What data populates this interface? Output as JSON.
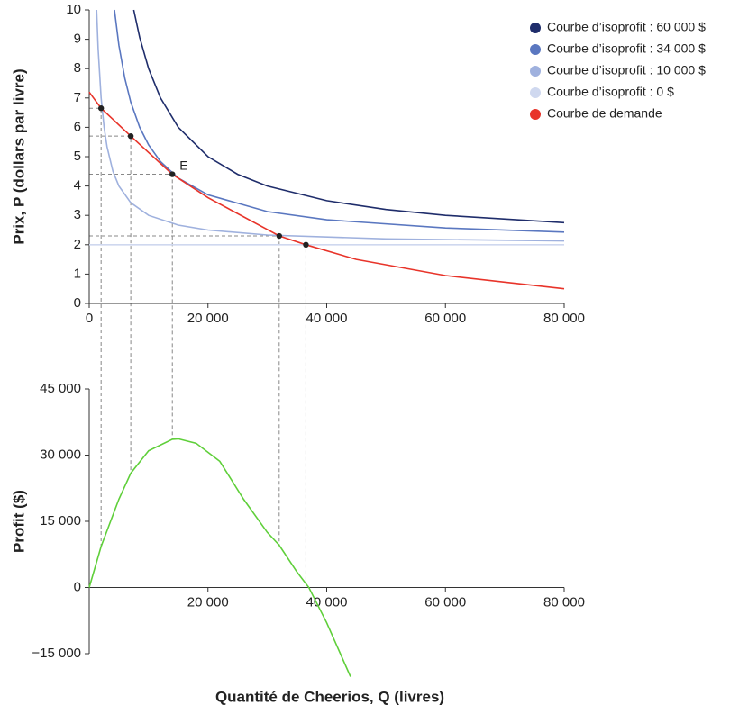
{
  "chart_data": [
    {
      "type": "line",
      "y_label": "Prix, P (dollars par livre)",
      "xlim": [
        0,
        80000
      ],
      "ylim": [
        0,
        10
      ],
      "xticks": [
        0,
        {
          "value": 20000,
          "label": "20 000"
        },
        {
          "value": 40000,
          "label": "40 000"
        },
        {
          "value": 60000,
          "label": "60 000"
        },
        {
          "value": 80000,
          "label": "80 000"
        }
      ],
      "yticks": [
        0,
        1,
        2,
        3,
        4,
        5,
        6,
        7,
        8,
        9,
        10
      ],
      "legend": "top-right",
      "series": [
        {
          "name": "Courbe d’isoprofit : 60 000 $",
          "color": "#1f2d6b",
          "x": [
            7500,
            8500,
            10000,
            12000,
            15000,
            20000,
            25000,
            30000,
            40000,
            50000,
            60000,
            80000
          ],
          "values": [
            10,
            9.06,
            8,
            7,
            6,
            5,
            4.4,
            4,
            3.5,
            3.2,
            3,
            2.75
          ]
        },
        {
          "name": "Courbe d’isoprofit : 34 000 $",
          "color": "#5a77c0",
          "x": [
            4250,
            5000,
            6000,
            7000,
            8500,
            10000,
            12000,
            15000,
            20000,
            30000,
            40000,
            60000,
            80000
          ],
          "values": [
            10,
            8.8,
            7.67,
            6.86,
            6,
            5.4,
            4.83,
            4.27,
            3.7,
            3.13,
            2.85,
            2.57,
            2.43
          ]
        },
        {
          "name": "Courbe d’isoprofit : 10 000 $",
          "color": "#9fb1de",
          "x": [
            1250,
            1500,
            2000,
            2500,
            3000,
            4000,
            5000,
            7000,
            10000,
            15000,
            20000,
            30000,
            50000,
            80000
          ],
          "values": [
            10,
            8.67,
            7,
            6,
            5.33,
            4.5,
            4,
            3.43,
            3,
            2.67,
            2.5,
            2.33,
            2.2,
            2.13
          ]
        },
        {
          "name": "Courbe d’isoprofit : 0 $",
          "color": "#cfd8ef",
          "x": [
            0,
            80000
          ],
          "values": [
            2,
            2
          ]
        },
        {
          "name": "Courbe de demande",
          "color": "#e8342a",
          "x": [
            0,
            2000,
            7000,
            14000,
            20000,
            32000,
            36500,
            45000,
            60000,
            80000
          ],
          "values": [
            7.2,
            6.65,
            5.7,
            4.4,
            3.6,
            2.3,
            2.0,
            1.5,
            0.95,
            0.5
          ]
        }
      ],
      "points": {
        "x": [
          2000,
          7000,
          14000,
          32000,
          36500
        ],
        "values": [
          6.65,
          5.7,
          4.4,
          2.3,
          2.0
        ],
        "color": "#222"
      },
      "annotations": [
        {
          "point": 2,
          "text": "E"
        }
      ]
    },
    {
      "type": "line",
      "y_label": "Profit ($)",
      "x_label": "Quantité de Cheerios, Q (livres)",
      "xlim": [
        0,
        80000
      ],
      "ylim": [
        -15000,
        45000
      ],
      "xticks": [
        {
          "value": 20000,
          "label": "20 000"
        },
        {
          "value": 40000,
          "label": "40 000"
        },
        {
          "value": 60000,
          "label": "60 000"
        },
        {
          "value": 80000,
          "label": "80 000"
        }
      ],
      "yticks": [
        {
          "value": -15000,
          "label": "−15 000"
        },
        0,
        {
          "value": 15000,
          "label": "15 000"
        },
        {
          "value": 30000,
          "label": "30 000"
        },
        {
          "value": 45000,
          "label": "45 000"
        }
      ],
      "series": [
        {
          "name": "Profit",
          "color": "#5fcf3a",
          "x": [
            0,
            2000,
            5000,
            7000,
            10000,
            14000,
            15000,
            18000,
            22000,
            26000,
            30000,
            32000,
            35000,
            37000,
            40000,
            44000
          ],
          "values": [
            0,
            9300,
            20000,
            25900,
            31000,
            33600,
            33700,
            32700,
            28600,
            20000,
            12500,
            9600,
            3500,
            0,
            -8000,
            -20200
          ]
        }
      ]
    }
  ]
}
